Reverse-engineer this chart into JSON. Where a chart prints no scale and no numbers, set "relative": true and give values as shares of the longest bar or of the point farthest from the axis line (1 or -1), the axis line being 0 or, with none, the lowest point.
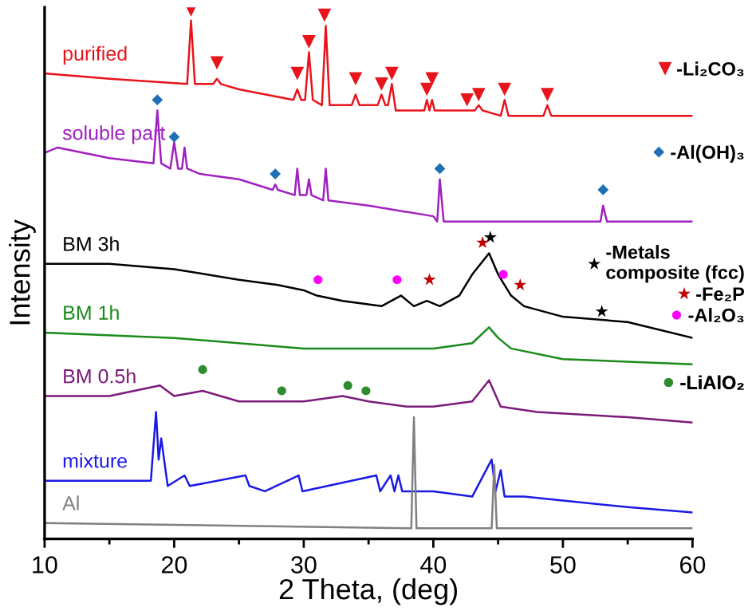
{
  "chart_data": {
    "type": "line",
    "relative": true,
    "xlabel": "2 Theta, (deg)",
    "ylabel": "Intensity",
    "xlim": [
      10,
      60
    ],
    "xticks": [
      10,
      {
        "value": 15,
        "label": null
      },
      20,
      {
        "value": 25,
        "label": null
      },
      30,
      {
        "value": 35,
        "label": null
      },
      40,
      {
        "value": 45,
        "label": null
      },
      50,
      {
        "value": 55,
        "label": null
      },
      60
    ],
    "legend": "right",
    "grid": false,
    "series": [
      {
        "name": "purified",
        "color": "#e8141b",
        "x": [
          10,
          15,
          21.0,
          21.3,
          21.6,
          23.0,
          23.3,
          23.6,
          25,
          29.2,
          29.5,
          29.8,
          30.1,
          30.4,
          30.7,
          31.4,
          31.7,
          32.0,
          33.7,
          34.0,
          34.3,
          35.7,
          36.0,
          36.3,
          36.5,
          36.8,
          37.1,
          39.3,
          39.5,
          39.7,
          39.9,
          40.1,
          43.2,
          43.5,
          43.8,
          45.2,
          45.5,
          45.8,
          48.5,
          48.8,
          49.1,
          52,
          60
        ],
        "values": [
          0.88,
          0.87,
          0.86,
          0.98,
          0.86,
          0.86,
          0.87,
          0.86,
          0.85,
          0.83,
          0.85,
          0.83,
          0.83,
          0.92,
          0.83,
          0.82,
          0.97,
          0.82,
          0.82,
          0.84,
          0.82,
          0.82,
          0.84,
          0.82,
          0.82,
          0.86,
          0.81,
          0.81,
          0.83,
          0.81,
          0.83,
          0.81,
          0.81,
          0.82,
          0.81,
          0.8,
          0.83,
          0.8,
          0.8,
          0.82,
          0.8,
          0.8,
          0.8
        ]
      },
      {
        "name": "soluble part",
        "color": "#a020c0",
        "x": [
          10,
          11,
          15,
          18.4,
          18.7,
          19.0,
          19.7,
          20.0,
          20.3,
          20.6,
          20.8,
          21.0,
          22,
          25,
          27.6,
          27.8,
          28.0,
          29.3,
          29.5,
          29.7,
          30.2,
          30.4,
          30.6,
          31.5,
          31.7,
          31.9,
          35,
          40,
          40.3,
          40.5,
          40.8,
          45,
          50,
          52.9,
          53.1,
          53.4,
          60
        ],
        "values": [
          0.73,
          0.74,
          0.72,
          0.71,
          0.81,
          0.71,
          0.7,
          0.75,
          0.7,
          0.7,
          0.74,
          0.7,
          0.69,
          0.68,
          0.66,
          0.67,
          0.66,
          0.65,
          0.7,
          0.65,
          0.65,
          0.68,
          0.65,
          0.64,
          0.7,
          0.64,
          0.63,
          0.61,
          0.6,
          0.68,
          0.6,
          0.6,
          0.6,
          0.6,
          0.63,
          0.6,
          0.6
        ]
      },
      {
        "name": "BM 3h",
        "color": "#000000",
        "x": [
          10,
          15,
          20,
          25,
          28,
          30,
          31,
          33,
          36,
          37.5,
          38.5,
          39.5,
          40.5,
          42,
          43,
          44.3,
          45,
          46,
          47,
          50,
          55,
          60
        ],
        "values": [
          0.52,
          0.52,
          0.51,
          0.49,
          0.48,
          0.47,
          0.46,
          0.45,
          0.44,
          0.46,
          0.44,
          0.45,
          0.44,
          0.46,
          0.5,
          0.54,
          0.5,
          0.46,
          0.44,
          0.42,
          0.41,
          0.38
        ]
      },
      {
        "name": "BM 1h",
        "color": "#1a8a1a",
        "x": [
          10,
          20,
          30,
          40,
          43,
          44.3,
          45,
          46,
          50,
          60
        ],
        "values": [
          0.39,
          0.38,
          0.36,
          0.36,
          0.37,
          0.4,
          0.38,
          0.36,
          0.34,
          0.33
        ]
      },
      {
        "name": "BM 0.5h",
        "color": "#7a1a7a",
        "x": [
          10,
          15,
          18.9,
          20,
          22.2,
          25,
          30,
          33,
          35,
          38,
          40,
          43,
          44.3,
          45.2,
          48,
          55,
          60
        ],
        "values": [
          0.27,
          0.27,
          0.29,
          0.27,
          0.28,
          0.26,
          0.26,
          0.27,
          0.26,
          0.25,
          0.25,
          0.26,
          0.3,
          0.25,
          0.24,
          0.23,
          0.22
        ]
      },
      {
        "name": "mixture",
        "color": "#1a1ae6",
        "x": [
          10,
          18.2,
          18.6,
          18.8,
          19.0,
          19.5,
          20.8,
          21.2,
          25.5,
          25.8,
          27,
          29.6,
          29.9,
          35.6,
          35.9,
          36.7,
          37.0,
          37.3,
          37.6,
          40,
          43,
          44.5,
          44.8,
          45.2,
          45.5,
          47,
          55,
          60
        ],
        "values": [
          0.11,
          0.11,
          0.24,
          0.15,
          0.19,
          0.1,
          0.12,
          0.1,
          0.12,
          0.1,
          0.09,
          0.12,
          0.09,
          0.12,
          0.09,
          0.12,
          0.09,
          0.12,
          0.09,
          0.09,
          0.08,
          0.15,
          0.09,
          0.13,
          0.08,
          0.08,
          0.06,
          0.05
        ]
      },
      {
        "name": "Al",
        "color": "#808080",
        "x": [
          10,
          38.3,
          38.5,
          38.7,
          44.5,
          44.7,
          44.9,
          60
        ],
        "values": [
          0.03,
          0.02,
          0.23,
          0.02,
          0.02,
          0.14,
          0.02,
          0.02
        ]
      },
      {
        "name": "-Li₂CO₃",
        "type": "scatter",
        "marker": "triangle",
        "color": "#e8141b",
        "x": [
          21.3,
          23.3,
          29.5,
          30.4,
          31.6,
          34,
          36,
          36.8,
          39.5,
          39.9,
          42.6,
          43.5,
          45.5,
          48.8
        ],
        "values": [
          1.0,
          0.9,
          0.88,
          0.94,
          0.99,
          0.87,
          0.86,
          0.88,
          0.85,
          0.87,
          0.83,
          0.84,
          0.85,
          0.84
        ]
      },
      {
        "name": "-Al(OH)₃",
        "type": "scatter",
        "marker": "diamond",
        "color": "#1f6fb5",
        "x": [
          18.7,
          20.0,
          27.8,
          40.5,
          53.1
        ],
        "values": [
          0.83,
          0.76,
          0.69,
          0.7,
          0.66
        ]
      },
      {
        "name": "-Metals composite (fcc)",
        "type": "scatter",
        "marker": "star",
        "color": "#000000",
        "x": [
          44.4,
          53.0
        ],
        "values": [
          0.57,
          0.43
        ]
      },
      {
        "name": "-Fe₂P",
        "type": "scatter",
        "marker": "star",
        "color": "#c00000",
        "x": [
          43.8,
          39.7,
          46.7
        ],
        "values": [
          0.56,
          0.49,
          0.48
        ]
      },
      {
        "name": "-Al₂O₃",
        "type": "scatter",
        "marker": "circle",
        "color": "#ff00ff",
        "x": [
          31.1,
          37.2,
          45.4
        ],
        "values": [
          0.49,
          0.49,
          0.5
        ]
      },
      {
        "name": "-LiAlO₂",
        "type": "scatter",
        "marker": "circle",
        "color": "#2e8b2e",
        "x": [
          22.2,
          28.3,
          33.4,
          34.8
        ],
        "values": [
          0.32,
          0.28,
          0.29,
          0.28
        ]
      }
    ]
  }
}
